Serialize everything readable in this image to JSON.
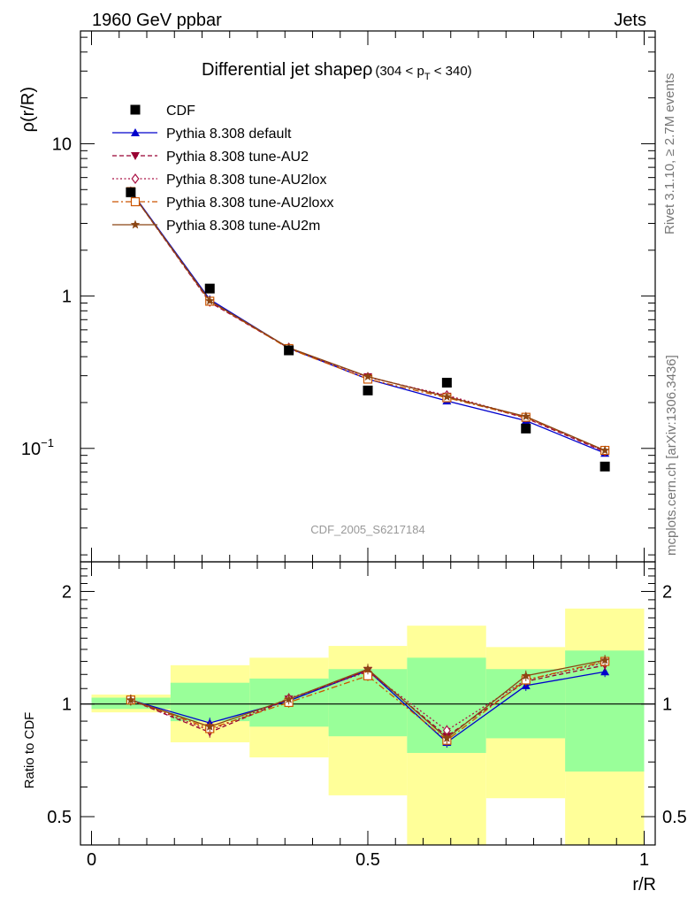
{
  "header": {
    "left_label": "1960 GeV ppbar",
    "right_label": "Jets"
  },
  "side_labels": {
    "rivet": "Rivet 3.1.10, ≥ 2.7M events",
    "mcplots": "mcplots.cern.ch [arXiv:1306.3436]"
  },
  "watermark": "CDF_2005_S6217184",
  "chart_data": [
    {
      "type": "scatter",
      "title": "Differential jet shapeρ",
      "subtitle_parts": {
        "open": "(304 < p",
        "sub": "T",
        "close": " < 340)"
      },
      "ylabel": "ρ(r/R)",
      "xlabel": "",
      "yscale": "log",
      "xlim": [
        -0.02,
        1.02
      ],
      "ylim": [
        0.018,
        55
      ],
      "y_tick_labels": [
        {
          "value": 10,
          "label": "10"
        },
        {
          "value": 1,
          "label": "1"
        },
        {
          "value": 0.1,
          "label": "10",
          "exponent": "−1"
        }
      ],
      "legend_position": "top-left",
      "x": [
        0.071,
        0.214,
        0.357,
        0.5,
        0.643,
        0.786,
        0.929
      ],
      "data": {
        "name": "CDF",
        "values": [
          4.8,
          1.12,
          0.44,
          0.24,
          0.27,
          0.135,
          0.076
        ]
      },
      "series": [
        {
          "name": "Pythia 8.308 default",
          "color": "#0000cc",
          "marker": "triangle-up",
          "dash": "solid",
          "values": [
            4.9,
            0.95,
            0.455,
            0.285,
            0.205,
            0.152,
            0.093
          ]
        },
        {
          "name": "Pythia 8.308 tune-AU2",
          "color": "#990033",
          "marker": "triangle-down",
          "dash": "dashed",
          "values": [
            4.85,
            0.91,
            0.455,
            0.295,
            0.22,
            0.158,
            0.095
          ]
        },
        {
          "name": "Pythia 8.308 tune-AU2lox",
          "color": "#aa1144",
          "marker": "diamond-open",
          "dash": "dotted",
          "values": [
            4.85,
            0.92,
            0.458,
            0.293,
            0.223,
            0.16,
            0.096
          ]
        },
        {
          "name": "Pythia 8.308 tune-AU2loxx",
          "color": "#cc5500",
          "marker": "square-open",
          "dash": "dashdot",
          "values": [
            4.85,
            0.925,
            0.452,
            0.285,
            0.215,
            0.16,
            0.097
          ]
        },
        {
          "name": "Pythia 8.308 tune-AU2m",
          "color": "#8b4513",
          "marker": "star",
          "dash": "solid",
          "values": [
            4.85,
            0.93,
            0.458,
            0.296,
            0.218,
            0.162,
            0.097
          ]
        }
      ]
    },
    {
      "type": "scatter",
      "ylabel": "Ratio to CDF",
      "xlabel": "r/R",
      "yscale": "log",
      "xlim": [
        -0.02,
        1.02
      ],
      "ylim": [
        0.42,
        2.4
      ],
      "x_tick_labels": [
        {
          "value": 0,
          "label": "0"
        },
        {
          "value": 0.5,
          "label": "0.5"
        },
        {
          "value": 1,
          "label": "1"
        }
      ],
      "y_tick_labels": [
        {
          "value": 2,
          "label": "2"
        },
        {
          "value": 1,
          "label": "1"
        },
        {
          "value": 0.5,
          "label": "0.5"
        }
      ],
      "reference_line": 1,
      "bins": [
        {
          "lo": 0,
          "hi": 0.143,
          "green": [
            0.97,
            1.04
          ],
          "yellow": [
            0.95,
            1.06
          ]
        },
        {
          "lo": 0.143,
          "hi": 0.286,
          "green": [
            0.9,
            1.14
          ],
          "yellow": [
            0.79,
            1.27
          ]
        },
        {
          "lo": 0.286,
          "hi": 0.429,
          "green": [
            0.87,
            1.17
          ],
          "yellow": [
            0.72,
            1.33
          ]
        },
        {
          "lo": 0.429,
          "hi": 0.571,
          "green": [
            0.82,
            1.24
          ],
          "yellow": [
            0.57,
            1.43
          ]
        },
        {
          "lo": 0.571,
          "hi": 0.714,
          "green": [
            0.74,
            1.33
          ],
          "yellow": [
            0.38,
            1.62
          ]
        },
        {
          "lo": 0.714,
          "hi": 0.857,
          "green": [
            0.81,
            1.24
          ],
          "yellow": [
            0.56,
            1.42
          ]
        },
        {
          "lo": 0.857,
          "hi": 1.0,
          "green": [
            0.66,
            1.39
          ],
          "yellow": [
            0.38,
            1.8
          ]
        }
      ],
      "series": [
        {
          "name": "Pythia 8.308 default",
          "values": [
            1.025,
            0.89,
            1.02,
            1.23,
            0.79,
            1.12,
            1.22
          ]
        },
        {
          "name": "Pythia 8.308 tune-AU2",
          "values": [
            1.025,
            0.84,
            1.03,
            1.23,
            0.82,
            1.15,
            1.27
          ]
        },
        {
          "name": "Pythia 8.308 tune-AU2lox",
          "values": [
            1.025,
            0.85,
            1.035,
            1.22,
            0.85,
            1.16,
            1.29
          ]
        },
        {
          "name": "Pythia 8.308 tune-AU2loxx",
          "values": [
            1.025,
            0.86,
            1.01,
            1.19,
            0.8,
            1.16,
            1.3
          ]
        },
        {
          "name": "Pythia 8.308 tune-AU2m",
          "values": [
            1.025,
            0.87,
            1.03,
            1.24,
            0.81,
            1.19,
            1.31
          ]
        }
      ]
    }
  ]
}
